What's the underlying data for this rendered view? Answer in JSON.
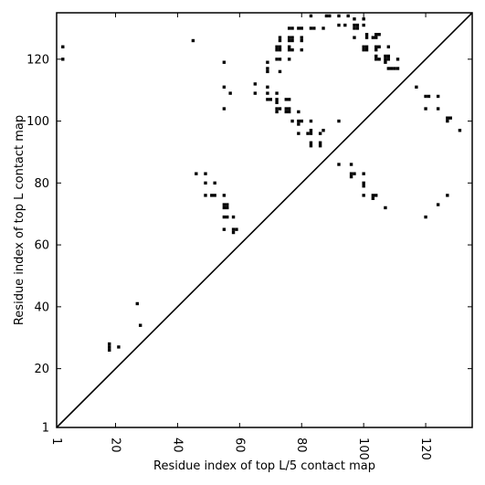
{
  "chart_data": {
    "type": "scatter",
    "title": "",
    "xlabel": "Residue index of top L/5 contact map",
    "ylabel": "Residue index of top L contact map",
    "xlim": [
      1,
      135
    ],
    "ylim": [
      1,
      135
    ],
    "x_ticks": [
      1,
      20,
      40,
      60,
      80,
      100,
      120
    ],
    "y_ticks": [
      1,
      20,
      40,
      60,
      80,
      100,
      120
    ],
    "x_tick_rotation": "vertical",
    "grid": false,
    "legend": "none",
    "diagonal_line": true,
    "colors": {
      "marker": "#000000",
      "line": "#000000",
      "background": "#ffffff"
    },
    "series": [
      {
        "name": "",
        "points": [
          [
            18,
            26
          ],
          [
            18,
            27
          ],
          [
            18,
            28
          ],
          [
            21,
            27
          ],
          [
            27,
            41
          ],
          [
            28,
            34
          ],
          [
            46,
            83
          ],
          [
            49,
            83
          ],
          [
            49,
            80
          ],
          [
            49,
            76
          ],
          [
            51,
            76
          ],
          [
            52,
            76
          ],
          [
            52,
            80
          ],
          [
            55,
            76
          ],
          [
            55,
            73
          ],
          [
            55,
            72
          ],
          [
            56,
            73
          ],
          [
            56,
            72
          ],
          [
            55,
            69
          ],
          [
            56,
            69
          ],
          [
            55,
            65
          ],
          [
            58,
            69
          ],
          [
            58,
            65
          ],
          [
            58,
            64
          ],
          [
            59,
            65
          ],
          [
            45,
            126
          ],
          [
            3,
            124
          ],
          [
            3,
            120
          ],
          [
            55,
            119
          ],
          [
            55,
            111
          ],
          [
            55,
            104
          ],
          [
            57,
            109
          ],
          [
            65,
            112
          ],
          [
            65,
            109
          ],
          [
            69,
            119
          ],
          [
            69,
            117
          ],
          [
            69,
            116
          ],
          [
            69,
            111
          ],
          [
            69,
            109
          ],
          [
            69,
            107
          ],
          [
            70,
            107
          ],
          [
            72,
            124
          ],
          [
            73,
            124
          ],
          [
            72,
            123
          ],
          [
            73,
            123
          ],
          [
            73,
            127
          ],
          [
            73,
            126
          ],
          [
            72,
            120
          ],
          [
            73,
            120
          ],
          [
            73,
            116
          ],
          [
            72,
            109
          ],
          [
            72,
            107
          ],
          [
            72,
            106
          ],
          [
            72,
            104
          ],
          [
            72,
            103
          ],
          [
            73,
            104
          ],
          [
            75,
            107
          ],
          [
            76,
            107
          ],
          [
            75,
            104
          ],
          [
            75,
            103
          ],
          [
            76,
            104
          ],
          [
            76,
            103
          ],
          [
            77,
            100
          ],
          [
            76,
            130
          ],
          [
            77,
            130
          ],
          [
            76,
            127
          ],
          [
            77,
            127
          ],
          [
            76,
            126
          ],
          [
            77,
            126
          ],
          [
            76,
            124
          ],
          [
            76,
            123
          ],
          [
            77,
            123
          ],
          [
            76,
            120
          ],
          [
            79,
            130
          ],
          [
            80,
            130
          ],
          [
            80,
            127
          ],
          [
            80,
            126
          ],
          [
            80,
            123
          ],
          [
            79,
            103
          ],
          [
            79,
            100
          ],
          [
            80,
            100
          ],
          [
            79,
            99
          ],
          [
            79,
            96
          ],
          [
            83,
            134
          ],
          [
            83,
            130
          ],
          [
            84,
            130
          ],
          [
            87,
            130
          ],
          [
            82,
            96
          ],
          [
            83,
            100
          ],
          [
            83,
            97
          ],
          [
            83,
            96
          ],
          [
            83,
            93
          ],
          [
            83,
            92
          ],
          [
            86,
            96
          ],
          [
            86,
            93
          ],
          [
            86,
            92
          ],
          [
            87,
            97
          ],
          [
            88,
            134
          ],
          [
            89,
            134
          ],
          [
            92,
            134
          ],
          [
            95,
            134
          ],
          [
            97,
            133
          ],
          [
            100,
            133
          ],
          [
            92,
            131
          ],
          [
            94,
            131
          ],
          [
            97,
            131
          ],
          [
            98,
            131
          ],
          [
            100,
            131
          ],
          [
            97,
            130
          ],
          [
            98,
            130
          ],
          [
            97,
            127
          ],
          [
            101,
            128
          ],
          [
            101,
            127
          ],
          [
            103,
            127
          ],
          [
            104,
            128
          ],
          [
            105,
            128
          ],
          [
            104,
            127
          ],
          [
            100,
            124
          ],
          [
            101,
            124
          ],
          [
            100,
            123
          ],
          [
            101,
            123
          ],
          [
            104,
            124
          ],
          [
            105,
            124
          ],
          [
            104,
            123
          ],
          [
            104,
            121
          ],
          [
            104,
            120
          ],
          [
            105,
            120
          ],
          [
            107,
            121
          ],
          [
            108,
            121
          ],
          [
            107,
            120
          ],
          [
            108,
            120
          ],
          [
            108,
            124
          ],
          [
            107,
            119
          ],
          [
            108,
            117
          ],
          [
            109,
            117
          ],
          [
            110,
            117
          ],
          [
            111,
            117
          ],
          [
            111,
            120
          ],
          [
            92,
            100
          ],
          [
            92,
            86
          ],
          [
            96,
            86
          ],
          [
            96,
            83
          ],
          [
            97,
            83
          ],
          [
            96,
            82
          ],
          [
            100,
            83
          ],
          [
            100,
            80
          ],
          [
            100,
            79
          ],
          [
            100,
            76
          ],
          [
            103,
            76
          ],
          [
            104,
            76
          ],
          [
            103,
            75
          ],
          [
            107,
            72
          ],
          [
            117,
            111
          ],
          [
            120,
            108
          ],
          [
            121,
            108
          ],
          [
            120,
            104
          ],
          [
            124,
            108
          ],
          [
            124,
            104
          ],
          [
            127,
            101
          ],
          [
            128,
            101
          ],
          [
            127,
            100
          ],
          [
            131,
            97
          ],
          [
            124,
            73
          ],
          [
            127,
            76
          ],
          [
            120,
            69
          ]
        ]
      }
    ]
  }
}
